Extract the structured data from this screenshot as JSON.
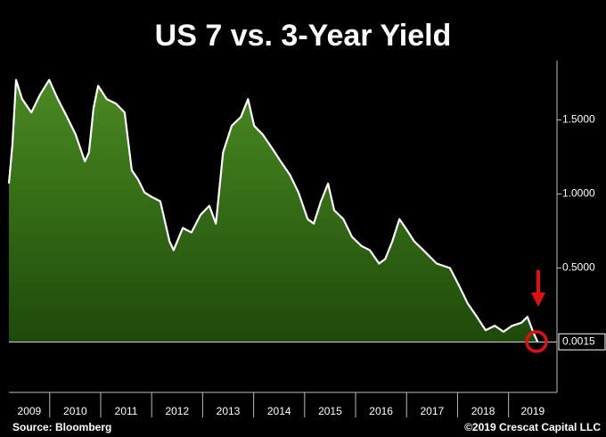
{
  "chart_data": {
    "type": "area",
    "title": "US 7 vs. 3-Year Yield",
    "source": "Source: Bloomberg",
    "credit": "©2019 Crescat Capital LLC",
    "x": [
      2009.2,
      2009.27,
      2009.34,
      2009.46,
      2009.64,
      2009.81,
      2009.99,
      2010.16,
      2010.34,
      2010.51,
      2010.69,
      2010.77,
      2010.86,
      2010.95,
      2011.12,
      2011.3,
      2011.47,
      2011.61,
      2011.73,
      2011.86,
      2012.0,
      2012.17,
      2012.35,
      2012.43,
      2012.61,
      2012.78,
      2012.96,
      2013.13,
      2013.26,
      2013.4,
      2013.57,
      2013.75,
      2013.89,
      2014.01,
      2014.18,
      2014.36,
      2014.53,
      2014.71,
      2014.88,
      2015.06,
      2015.18,
      2015.32,
      2015.46,
      2015.58,
      2015.76,
      2015.93,
      2016.11,
      2016.28,
      2016.46,
      2016.58,
      2016.72,
      2016.86,
      2016.98,
      2017.15,
      2017.33,
      2017.59,
      2017.85,
      2018.03,
      2018.2,
      2018.38,
      2018.55,
      2018.73,
      2018.9,
      2019.07,
      2019.25,
      2019.37,
      2019.48,
      2019.57
    ],
    "values": [
      1.07,
      1.34,
      1.77,
      1.64,
      1.55,
      1.67,
      1.77,
      1.64,
      1.52,
      1.4,
      1.22,
      1.28,
      1.58,
      1.73,
      1.64,
      1.61,
      1.55,
      1.16,
      1.1,
      1.01,
      0.98,
      0.95,
      0.68,
      0.62,
      0.77,
      0.74,
      0.86,
      0.92,
      0.8,
      1.28,
      1.46,
      1.52,
      1.64,
      1.46,
      1.4,
      1.31,
      1.22,
      1.13,
      1.01,
      0.83,
      0.8,
      0.95,
      1.07,
      0.89,
      0.83,
      0.71,
      0.65,
      0.62,
      0.53,
      0.56,
      0.68,
      0.83,
      0.77,
      0.68,
      0.62,
      0.53,
      0.5,
      0.38,
      0.26,
      0.17,
      0.08,
      0.11,
      0.07,
      0.11,
      0.13,
      0.17,
      0.07,
      0.0015
    ],
    "color": "#ffffff",
    "fill": "#3f7a1c",
    "xlim": [
      2009.2,
      2019.95
    ],
    "xticks": [
      2009,
      2010,
      2011,
      2012,
      2013,
      2014,
      2015,
      2016,
      2017,
      2018,
      2019
    ],
    "ylim": [
      -0.34,
      1.9
    ],
    "yticks": [
      {
        "value": 0.5,
        "label": "0.5000"
      },
      {
        "value": 1.0,
        "label": "1.0000"
      },
      {
        "value": 1.5,
        "label": "1.5000"
      }
    ]
  }
}
